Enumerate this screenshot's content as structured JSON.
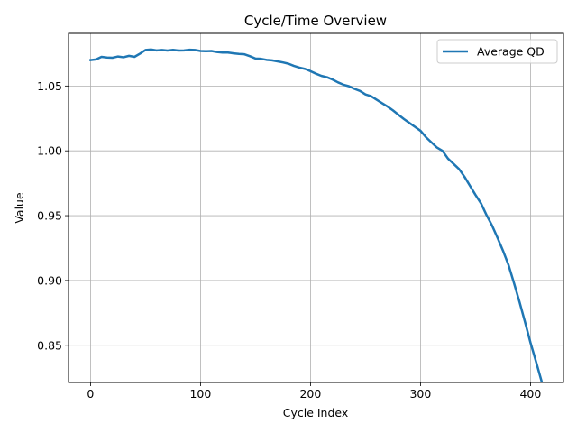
{
  "chart_data": {
    "type": "line",
    "title": "Cycle/Time Overview",
    "xlabel": "Cycle Index",
    "ylabel": "Value",
    "xlim": [
      -20,
      430
    ],
    "ylim": [
      0.8213,
      1.0906
    ],
    "xticks": [
      0,
      100,
      200,
      300,
      400
    ],
    "yticks": [
      0.85,
      0.9,
      0.95,
      1.0,
      1.05
    ],
    "ytick_labels": [
      "0.85",
      "0.90",
      "0.95",
      "1.00",
      "1.05"
    ],
    "grid": true,
    "legend_position": "top-right",
    "series": [
      {
        "name": "Average QD",
        "color": "#1f77b4",
        "x": [
          0,
          5,
          10,
          15,
          20,
          25,
          30,
          35,
          40,
          45,
          50,
          55,
          60,
          65,
          70,
          75,
          80,
          85,
          90,
          95,
          100,
          105,
          110,
          115,
          120,
          125,
          130,
          135,
          140,
          145,
          150,
          155,
          160,
          165,
          170,
          175,
          180,
          185,
          190,
          195,
          200,
          205,
          210,
          215,
          220,
          225,
          230,
          235,
          240,
          245,
          250,
          255,
          260,
          265,
          270,
          275,
          280,
          285,
          290,
          295,
          300,
          305,
          310,
          315,
          320,
          325,
          330,
          335,
          340,
          345,
          350,
          355,
          360,
          365,
          370,
          375,
          380,
          385,
          390,
          395,
          400,
          405,
          410
        ],
        "y": [
          1.07,
          1.0705,
          1.0725,
          1.072,
          1.0718,
          1.0728,
          1.0722,
          1.0733,
          1.0725,
          1.075,
          1.0778,
          1.0782,
          1.0775,
          1.0778,
          1.0774,
          1.0779,
          1.0774,
          1.0775,
          1.078,
          1.0778,
          1.077,
          1.0769,
          1.077,
          1.0762,
          1.0758,
          1.0758,
          1.0752,
          1.0748,
          1.0745,
          1.073,
          1.0712,
          1.071,
          1.0702,
          1.0698,
          1.069,
          1.0682,
          1.0672,
          1.0655,
          1.0642,
          1.0632,
          1.0615,
          1.0595,
          1.0578,
          1.0568,
          1.055,
          1.0528,
          1.051,
          1.0498,
          1.0478,
          1.0462,
          1.0435,
          1.0422,
          1.0395,
          1.0368,
          1.0342,
          1.0312,
          1.0278,
          1.0245,
          1.0215,
          1.0185,
          1.0155,
          1.0105,
          1.0065,
          1.0025,
          1.0,
          0.994,
          0.99,
          0.986,
          0.98,
          0.973,
          0.966,
          0.9595,
          0.9505,
          0.9425,
          0.933,
          0.923,
          0.912,
          0.898,
          0.8835,
          0.868,
          0.852,
          0.8375,
          0.8225
        ]
      }
    ]
  }
}
